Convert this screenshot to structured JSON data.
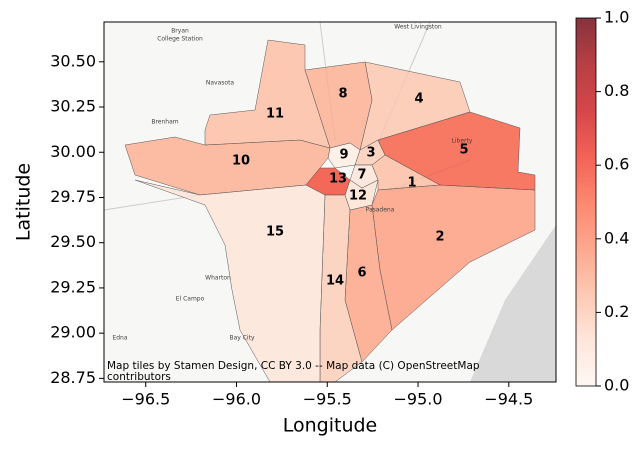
{
  "chart_data": {
    "type": "choropleth",
    "xlabel": "Longitude",
    "ylabel": "Latitude",
    "xlim": [
      -96.73,
      -94.24
    ],
    "ylim": [
      28.73,
      30.72
    ],
    "xticks": [
      {
        "value": -96.5,
        "label": "−96.5"
      },
      {
        "value": -96.0,
        "label": "−96.0"
      },
      {
        "value": -95.5,
        "label": "−95.5"
      },
      {
        "value": -95.0,
        "label": "−95.0"
      },
      {
        "value": -94.5,
        "label": "−94.5"
      }
    ],
    "yticks": [
      {
        "value": 28.75,
        "label": "28.75"
      },
      {
        "value": 29.0,
        "label": "29.00"
      },
      {
        "value": 29.25,
        "label": "29.25"
      },
      {
        "value": 29.5,
        "label": "29.50"
      },
      {
        "value": 29.75,
        "label": "29.75"
      },
      {
        "value": 30.0,
        "label": "30.00"
      },
      {
        "value": 30.25,
        "label": "30.25"
      },
      {
        "value": 30.5,
        "label": "30.50"
      }
    ],
    "colormap": "Reds",
    "colorbar": {
      "lim": [
        0,
        1
      ],
      "ticks": [
        {
          "value": 0,
          "label": "0.0"
        },
        {
          "value": 0.2,
          "label": "0.2"
        },
        {
          "value": 0.4,
          "label": "0.4"
        },
        {
          "value": 0.6,
          "label": "0.6"
        },
        {
          "value": 0.8,
          "label": "0.8"
        },
        {
          "value": 1,
          "label": "1.0"
        }
      ]
    },
    "regions": {
      "labels": [
        "1",
        "2",
        "3",
        "4",
        "5",
        "6",
        "7",
        "8",
        "9",
        "10",
        "11",
        "12",
        "13",
        "14",
        "15"
      ],
      "values": [
        0.25,
        0.35,
        0.2,
        0.22,
        0.55,
        0.33,
        0.1,
        0.3,
        0.05,
        0.3,
        0.25,
        0.12,
        0.6,
        0.2,
        0.1
      ]
    },
    "basemap_labels": [
      "Bryan",
      "College Station",
      "Navasota",
      "Brenham",
      "West Livingston",
      "Wharton",
      "El Campo",
      "Bay City",
      "Edna",
      "Pasadena",
      "Liberty"
    ],
    "attribution": "Map tiles by Stamen Design, CC BY 3.0 -- Map data (C) OpenStreetMap contributors"
  }
}
